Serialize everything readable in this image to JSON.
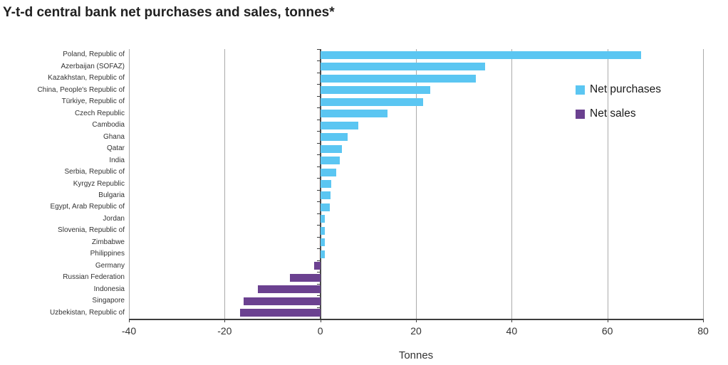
{
  "title": "Y-t-d central bank net purchases and sales, tonnes*",
  "chart_data": {
    "type": "bar",
    "orientation": "horizontal",
    "title": "Y-t-d central bank net purchases and sales, tonnes*",
    "xlabel": "Tonnes",
    "xlim": [
      -40,
      80
    ],
    "xticks": [
      -40,
      -20,
      0,
      20,
      40,
      60,
      80
    ],
    "grid": true,
    "legend_position": "upper-right",
    "legend_items": [
      {
        "label": "Net purchases",
        "color": "#5bc6f2"
      },
      {
        "label": "Net sales",
        "color": "#6b4190"
      }
    ],
    "categories": [
      "Poland, Republic of",
      "Azerbaijan (SOFAZ)",
      "Kazakhstan, Republic of",
      "China, People's Republic of",
      "Türkiye, Republic of",
      "Czech Republic",
      "Cambodia",
      "Ghana",
      "Qatar",
      "India",
      "Serbia, Republic of",
      "Kyrgyz Republic",
      "Bulgaria",
      "Egypt, Arab Republic of",
      "Jordan",
      "Slovenia, Republic of",
      "Zimbabwe",
      "Philippines",
      "Germany",
      "Russian Federation",
      "Indonesia",
      "Singapore",
      "Uzbekistan, Republic of"
    ],
    "values": [
      67,
      34.5,
      32.5,
      23,
      21.5,
      14,
      8,
      5.7,
      4.5,
      4,
      3.4,
      2.3,
      2.2,
      2,
      1,
      1,
      1,
      0.9,
      -1.3,
      -6.3,
      -13,
      -16,
      -16.8
    ],
    "positive_color": "#5bc6f2",
    "negative_color": "#6b4190"
  },
  "axis_colors": {
    "grid": "#ababab",
    "zero_line": "#4a4a4a",
    "axis_line": "#3d3d3d",
    "text": "#333333"
  }
}
